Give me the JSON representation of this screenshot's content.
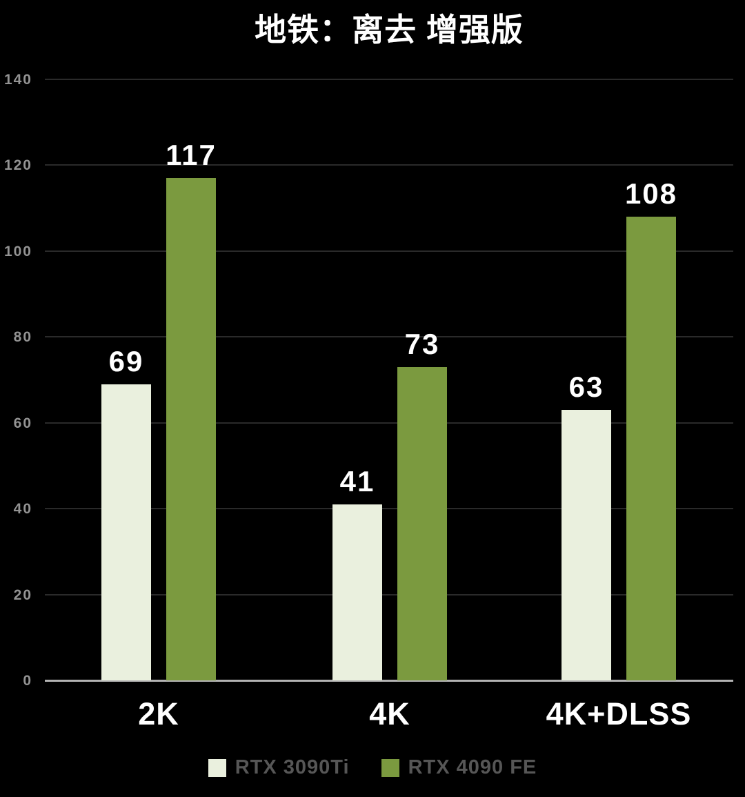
{
  "chart_data": {
    "type": "bar",
    "title": "地铁：离去 增强版",
    "categories": [
      "2K",
      "4K",
      "4K+DLSS"
    ],
    "series": [
      {
        "name": "RTX 3090Ti",
        "color": "#eaf0de",
        "values": [
          69,
          41,
          63
        ]
      },
      {
        "name": "RTX 4090 FE",
        "color": "#7b9a3f",
        "values": [
          117,
          73,
          108
        ]
      }
    ],
    "ylim": [
      0,
      140
    ],
    "yticks": [
      0,
      20,
      40,
      60,
      80,
      100,
      120,
      140
    ],
    "grid": true,
    "legend_position": "bottom",
    "colors": {
      "background": "#000000",
      "title_text": "#ffffff",
      "value_label_text": "#ffffff",
      "category_label_text": "#ffffff",
      "tick_label_text": "#939393",
      "legend_text": "#565656",
      "gridline": "#2a2a2a",
      "axis_line": "#b3b3b3"
    }
  }
}
